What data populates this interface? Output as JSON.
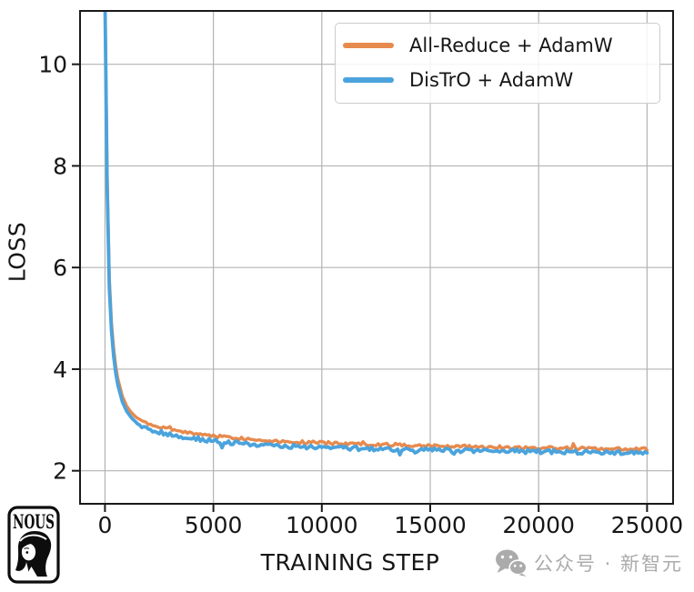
{
  "chart_data": {
    "type": "line",
    "title": "",
    "xlabel": "TRAINING STEP",
    "ylabel": "LOSS",
    "xlim": [
      -1150,
      26200
    ],
    "ylim": [
      1.35,
      11.05
    ],
    "x_ticks": [
      0,
      5000,
      10000,
      15000,
      20000,
      25000
    ],
    "y_ticks": [
      2,
      4,
      6,
      8,
      10
    ],
    "grid": true,
    "grid_color": "#b3b3b3",
    "spine_color": "#1a1a1a",
    "tick_label_color": "#161616",
    "legend_position": "upper right",
    "series": [
      {
        "name": "All-Reduce + AdamW",
        "color": "#e78a4e",
        "points": [
          [
            0,
            11.3
          ],
          [
            50,
            9.5
          ],
          [
            100,
            7.8
          ],
          [
            150,
            6.6
          ],
          [
            200,
            5.8
          ],
          [
            300,
            4.9
          ],
          [
            400,
            4.4
          ],
          [
            500,
            4.05
          ],
          [
            600,
            3.8
          ],
          [
            800,
            3.47
          ],
          [
            1000,
            3.27
          ],
          [
            1300,
            3.1
          ],
          [
            1600,
            3.0
          ],
          [
            2000,
            2.92
          ],
          [
            2500,
            2.86
          ],
          [
            3000,
            2.81
          ],
          [
            3500,
            2.77
          ],
          [
            4000,
            2.74
          ],
          [
            5000,
            2.69
          ],
          [
            6000,
            2.65
          ],
          [
            7000,
            2.61
          ],
          [
            8000,
            2.585
          ],
          [
            9000,
            2.565
          ],
          [
            10000,
            2.55
          ],
          [
            12000,
            2.525
          ],
          [
            14000,
            2.505
          ],
          [
            16000,
            2.485
          ],
          [
            18000,
            2.465
          ],
          [
            20000,
            2.45
          ],
          [
            22000,
            2.44
          ],
          [
            24000,
            2.43
          ],
          [
            25000,
            2.425
          ]
        ]
      },
      {
        "name": "DisTrO + AdamW",
        "color": "#4ba3dc",
        "points": [
          [
            0,
            11.3
          ],
          [
            50,
            9.3
          ],
          [
            100,
            7.6
          ],
          [
            150,
            6.4
          ],
          [
            200,
            5.6
          ],
          [
            300,
            4.75
          ],
          [
            400,
            4.25
          ],
          [
            500,
            3.92
          ],
          [
            600,
            3.68
          ],
          [
            800,
            3.36
          ],
          [
            1000,
            3.17
          ],
          [
            1300,
            3.0
          ],
          [
            1600,
            2.9
          ],
          [
            2000,
            2.82
          ],
          [
            2500,
            2.76
          ],
          [
            3000,
            2.71
          ],
          [
            3500,
            2.67
          ],
          [
            4000,
            2.64
          ],
          [
            5000,
            2.59
          ],
          [
            6000,
            2.55
          ],
          [
            7000,
            2.52
          ],
          [
            8000,
            2.49
          ],
          [
            9000,
            2.47
          ],
          [
            10000,
            2.455
          ],
          [
            12000,
            2.435
          ],
          [
            14000,
            2.415
          ],
          [
            16000,
            2.4
          ],
          [
            18000,
            2.39
          ],
          [
            20000,
            2.38
          ],
          [
            22000,
            2.37
          ],
          [
            24000,
            2.355
          ],
          [
            25000,
            2.35
          ]
        ]
      }
    ]
  },
  "branding": {
    "logo_text": "NOUS"
  },
  "watermark": {
    "text": "公众号 · 新智元",
    "icon": "wechat-icon",
    "color": "#ababab"
  }
}
